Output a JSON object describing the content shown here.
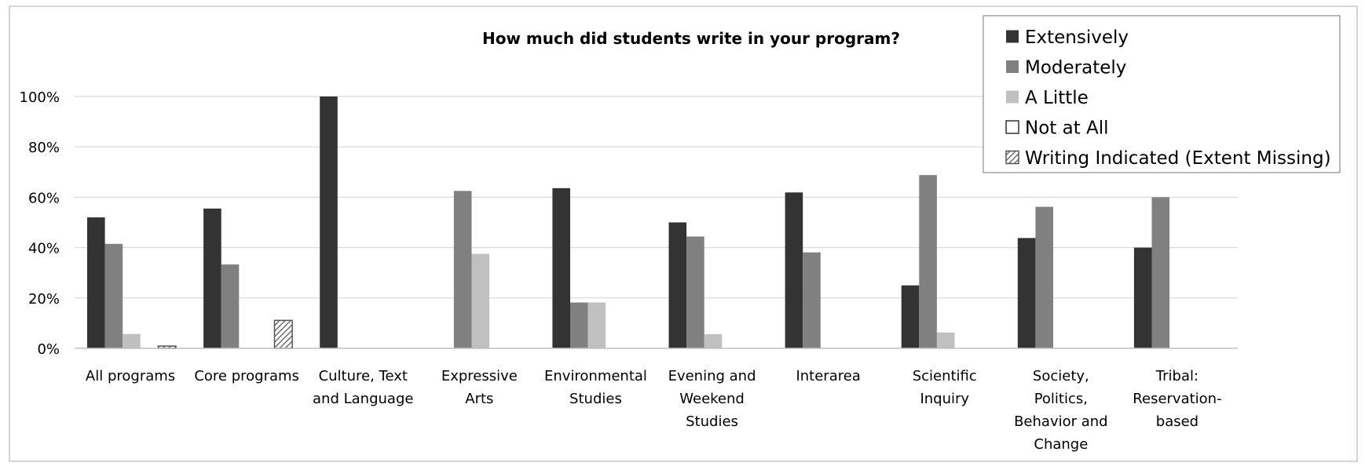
{
  "chart_data": {
    "type": "bar",
    "title": "How much did students write in your program?",
    "xlabel": "",
    "ylabel": "",
    "ylim": [
      0,
      100
    ],
    "yticks": [
      "0%",
      "20%",
      "40%",
      "60%",
      "80%",
      "100%"
    ],
    "ytick_values": [
      0,
      20,
      40,
      60,
      80,
      100
    ],
    "grid": true,
    "legend_position": "top-right",
    "categories": [
      [
        "All programs"
      ],
      [
        "Core programs"
      ],
      [
        "Culture, Text",
        "and Language"
      ],
      [
        "Expressive",
        "Arts"
      ],
      [
        "Environmental",
        "Studies"
      ],
      [
        "Evening and",
        "Weekend",
        "Studies"
      ],
      [
        "Interarea"
      ],
      [
        "Scientific",
        "Inquiry"
      ],
      [
        "Society,",
        "Politics,",
        "Behavior and",
        "Change"
      ],
      [
        "Tribal:",
        "Reservation-",
        "based"
      ]
    ],
    "series": [
      {
        "name": "Extensively",
        "color": "#333333",
        "fill": "solid",
        "values": [
          52,
          55.5,
          100,
          0,
          63.6,
          50,
          61.9,
          25,
          43.8,
          40
        ]
      },
      {
        "name": "Moderately",
        "color": "#808080",
        "fill": "solid",
        "values": [
          41.5,
          33.3,
          0,
          62.5,
          18.2,
          44.4,
          38.1,
          68.8,
          56.2,
          60
        ]
      },
      {
        "name": "A Little",
        "color": "#c0c0c0",
        "fill": "solid",
        "values": [
          5.7,
          0,
          0,
          37.5,
          18.2,
          5.6,
          0,
          6.3,
          0,
          0
        ]
      },
      {
        "name": "Not at All",
        "color": "#ffffff",
        "fill": "outline",
        "values": [
          0,
          0,
          0,
          0,
          0,
          0,
          0,
          0,
          0,
          0
        ]
      },
      {
        "name": "Writing Indicated (Extent Missing)",
        "color": "#808080",
        "fill": "hatched",
        "values": [
          0.9,
          11.1,
          0,
          0,
          0,
          0,
          0,
          0,
          0,
          0
        ]
      }
    ]
  }
}
